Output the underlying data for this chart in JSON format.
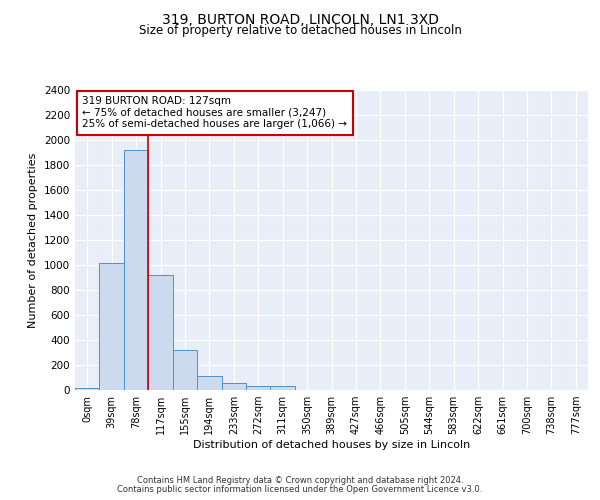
{
  "title_line1": "319, BURTON ROAD, LINCOLN, LN1 3XD",
  "title_line2": "Size of property relative to detached houses in Lincoln",
  "xlabel": "Distribution of detached houses by size in Lincoln",
  "ylabel": "Number of detached properties",
  "bin_labels": [
    "0sqm",
    "39sqm",
    "78sqm",
    "117sqm",
    "155sqm",
    "194sqm",
    "233sqm",
    "272sqm",
    "311sqm",
    "350sqm",
    "389sqm",
    "427sqm",
    "466sqm",
    "505sqm",
    "544sqm",
    "583sqm",
    "622sqm",
    "661sqm",
    "700sqm",
    "738sqm",
    "777sqm"
  ],
  "bar_heights": [
    20,
    1020,
    1920,
    920,
    320,
    110,
    55,
    30,
    30,
    0,
    0,
    0,
    0,
    0,
    0,
    0,
    0,
    0,
    0,
    0,
    0
  ],
  "bar_color": "#ccdaf0",
  "bar_edge_color": "#5090c8",
  "vline_x": 3.0,
  "vline_color": "#cc0000",
  "annotation_line1": "319 BURTON ROAD: 127sqm",
  "annotation_line2": "← 75% of detached houses are smaller (3,247)",
  "annotation_line3": "25% of semi-detached houses are larger (1,066) →",
  "annotation_box_color": "#ffffff",
  "annotation_box_edge": "#cc0000",
  "ylim": [
    0,
    2400
  ],
  "yticks": [
    0,
    200,
    400,
    600,
    800,
    1000,
    1200,
    1400,
    1600,
    1800,
    2000,
    2200,
    2400
  ],
  "bg_color": "#e8eef8",
  "footer_line1": "Contains HM Land Registry data © Crown copyright and database right 2024.",
  "footer_line2": "Contains public sector information licensed under the Open Government Licence v3.0."
}
